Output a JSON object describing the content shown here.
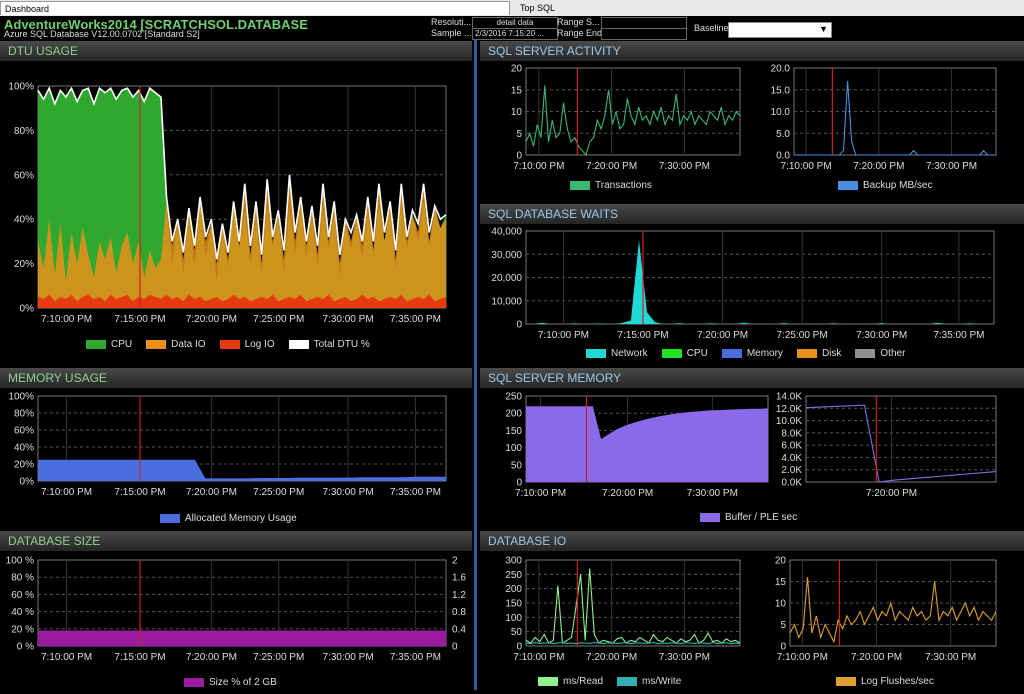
{
  "tabs": [
    {
      "label": "Dashboard"
    },
    {
      "label": "Top SQL"
    }
  ],
  "header": {
    "title": "AdventureWorks2014 [SCRATCHSOL.DATABASE",
    "subtitle": "Azure SQL Database V12.00.0702 [Standard S2]",
    "resolution_label": "Resoluti...",
    "resolution_value": "detail data",
    "sample_label": "Sample ...",
    "sample_value": "2/3/2016 7:15:20 ...",
    "range_start_label": "Range S...",
    "range_start_value": "",
    "range_end_label": "Range End",
    "range_end_value": "",
    "baseline_label": "Baseline",
    "baseline_value": ""
  },
  "panels": {
    "dtu": {
      "title": "DTU USAGE"
    },
    "activity": {
      "title": "SQL SERVER ACTIVITY"
    },
    "waits": {
      "title": "SQL DATABASE WAITS"
    },
    "memory": {
      "title": "MEMORY USAGE"
    },
    "servermem": {
      "title": "SQL SERVER MEMORY"
    },
    "dbsize": {
      "title": "DATABASE SIZE"
    },
    "dbio": {
      "title": "DATABASE IO"
    }
  },
  "colors": {
    "grid": "#555555",
    "marker": "#cc2222",
    "cpu": "#2ea82e",
    "dataio": "#e8901a",
    "logio": "#e83a10",
    "total": "#ffffff",
    "transactions": "#3bb873",
    "backup": "#4a8ee0",
    "network": "#20d8d8",
    "waits_cpu": "#20e020",
    "waits_memory": "#4a6ee0",
    "waits_disk": "#e8901a",
    "waits_other": "#909090",
    "alloc": "#4a6ee0",
    "buffer": "#8a6ae8",
    "ple": "#8a6ae8",
    "dbsize": "#9a1aa0",
    "msread": "#90f090",
    "mswrite": "#30b0b0",
    "logflush": "#e0a030"
  },
  "chart_data": [
    {
      "id": "dtu",
      "type": "area",
      "title": "DTU USAGE",
      "x_ticks": [
        "7:10:00 PM",
        "7:15:00 PM",
        "7:20:00 PM",
        "7:25:00 PM",
        "7:30:00 PM",
        "7:35:00 PM"
      ],
      "y_ticks": [
        "100%",
        "80%",
        "60%",
        "40%",
        "20%",
        "0%"
      ],
      "ylim": [
        0,
        100
      ],
      "grid": true,
      "legend": [
        "CPU",
        "Data IO",
        "Log IO",
        "Total DTU %"
      ],
      "series": [
        {
          "name": "Total DTU %",
          "values": [
            98,
            94,
            99,
            92,
            98,
            95,
            99,
            93,
            98,
            99,
            92,
            99,
            97,
            99,
            94,
            98,
            99,
            95,
            98,
            93,
            99,
            97,
            95,
            50,
            30,
            40,
            25,
            45,
            28,
            50,
            32,
            40,
            22,
            38,
            25,
            48,
            30,
            56,
            28,
            48,
            24,
            58,
            32,
            44,
            26,
            60,
            34,
            50,
            30,
            46,
            28,
            56,
            32,
            48,
            24,
            40,
            34,
            42,
            30,
            50,
            30,
            56,
            34,
            48,
            26,
            56,
            32,
            44,
            38,
            56,
            34,
            46,
            40,
            42
          ]
        },
        {
          "name": "CPU",
          "values": [
            98,
            94,
            99,
            92,
            98,
            95,
            99,
            93,
            98,
            99,
            92,
            99,
            97,
            99,
            94,
            98,
            99,
            95,
            98,
            93,
            99,
            97,
            95,
            45,
            20,
            38,
            15,
            42,
            18,
            48,
            22,
            38,
            12,
            36,
            18,
            46,
            26,
            44,
            20,
            40,
            16,
            46,
            28,
            42,
            16,
            44,
            24,
            46,
            22,
            42,
            18,
            46,
            26,
            44,
            14,
            38,
            26,
            40,
            22,
            44,
            24,
            46,
            30,
            44,
            16,
            48,
            26,
            42,
            30,
            48,
            28,
            44,
            36,
            42
          ]
        },
        {
          "name": "Data IO",
          "values": [
            30,
            18,
            40,
            15,
            38,
            12,
            34,
            20,
            36,
            24,
            14,
            30,
            22,
            32,
            16,
            28,
            34,
            20,
            30,
            14,
            26,
            18,
            22,
            48,
            28,
            40,
            22,
            44,
            26,
            50,
            30,
            38,
            20,
            38,
            22,
            48,
            28,
            56,
            24,
            48,
            20,
            58,
            30,
            42,
            22,
            60,
            30,
            50,
            28,
            46,
            24,
            56,
            30,
            48,
            20,
            40,
            30,
            42,
            28,
            50,
            26,
            56,
            30,
            48,
            22,
            56,
            30,
            42,
            34,
            56,
            30,
            46,
            36,
            40
          ]
        },
        {
          "name": "Log IO",
          "values": [
            5,
            4,
            6,
            3,
            5,
            4,
            6,
            3,
            5,
            6,
            4,
            5,
            3,
            6,
            4,
            5,
            6,
            3,
            5,
            4,
            6,
            5,
            4,
            6,
            4,
            5,
            3,
            6,
            4,
            5,
            3,
            4,
            5,
            3,
            4,
            6,
            4,
            5,
            3,
            4,
            5,
            4,
            6,
            3,
            4,
            5,
            4,
            6,
            3,
            4,
            5,
            4,
            6,
            3,
            4,
            5,
            3,
            4,
            6,
            4,
            5,
            3,
            4,
            5,
            4,
            6,
            3,
            4,
            5,
            4,
            6,
            3,
            4,
            5
          ]
        }
      ]
    },
    {
      "id": "transactions",
      "type": "line",
      "y_ticks": [
        "20",
        "15",
        "10",
        "5",
        "0"
      ],
      "ylim": [
        0,
        20
      ],
      "x_ticks": [
        "7:10:00 PM",
        "7:20:00 PM",
        "7:30:00 PM"
      ],
      "legend": [
        "Transactions"
      ],
      "series": [
        {
          "name": "Transactions",
          "values": [
            3,
            5,
            2,
            7,
            4,
            16,
            3,
            8,
            4,
            5,
            12,
            6,
            3,
            4,
            2,
            1,
            0,
            3,
            4,
            8,
            6,
            9,
            15,
            7,
            10,
            6,
            7,
            13,
            9,
            7,
            11,
            8,
            9,
            7,
            10,
            8,
            11,
            7,
            9,
            8,
            14,
            7,
            9,
            8,
            10,
            7,
            9,
            8,
            7,
            10,
            9,
            8,
            11,
            7,
            9,
            8,
            10,
            9
          ]
        }
      ]
    },
    {
      "id": "backup",
      "type": "line",
      "y_ticks": [
        "20.0",
        "15.0",
        "10.0",
        "5.0",
        "0.0"
      ],
      "ylim": [
        0,
        20
      ],
      "x_ticks": [
        "7:10:00 PM",
        "7:20:00 PM",
        "7:30:00 PM"
      ],
      "legend": [
        "Backup MB/sec"
      ],
      "series": [
        {
          "name": "Backup MB/sec",
          "values": [
            0,
            0,
            0,
            0,
            0,
            0,
            0,
            0,
            0,
            0,
            0,
            0,
            1,
            17,
            3,
            0,
            0,
            0,
            0,
            0,
            0,
            0,
            0,
            0,
            0,
            0,
            0,
            0,
            0,
            1,
            0,
            0,
            0,
            0,
            0,
            0,
            0,
            0,
            0,
            0,
            0,
            0,
            0,
            0,
            0,
            0,
            1,
            0,
            0,
            0
          ]
        }
      ]
    },
    {
      "id": "waits",
      "type": "area",
      "y_ticks": [
        "40,000",
        "30,000",
        "20,000",
        "10,000",
        "0"
      ],
      "ylim": [
        0,
        40000
      ],
      "x_ticks": [
        "7:10:00 PM",
        "7:15:00 PM",
        "7:20:00 PM",
        "7:25:00 PM",
        "7:30:00 PM",
        "7:35:00 PM"
      ],
      "legend": [
        "Network",
        "CPU",
        "Memory",
        "Disk",
        "Other"
      ],
      "series": [
        {
          "name": "Network",
          "values": [
            0,
            0,
            500,
            0,
            0,
            0,
            300,
            0,
            0,
            200,
            0,
            0,
            500,
            1500,
            36000,
            5000,
            800,
            0,
            0,
            400,
            0,
            0,
            0,
            300,
            0,
            0,
            0,
            500,
            0,
            0,
            0,
            0,
            400,
            0,
            0,
            0,
            0,
            0,
            300,
            0,
            0,
            0,
            0,
            0,
            400,
            0,
            0,
            0,
            0,
            0,
            0,
            500,
            0,
            0,
            0,
            300,
            0,
            0,
            0
          ]
        }
      ]
    },
    {
      "id": "memory",
      "type": "area",
      "y_ticks": [
        "100%",
        "80%",
        "60%",
        "40%",
        "20%",
        "0%"
      ],
      "ylim": [
        0,
        100
      ],
      "x_ticks": [
        "7:10:00 PM",
        "7:15:00 PM",
        "7:20:00 PM",
        "7:25:00 PM",
        "7:30:00 PM",
        "7:35:00 PM"
      ],
      "legend": [
        "Allocated Memory Usage"
      ],
      "series": [
        {
          "name": "Allocated Memory Usage",
          "values": [
            25,
            25,
            25,
            25,
            25,
            25,
            25,
            25,
            25,
            25,
            25,
            25,
            25,
            25,
            25,
            25,
            3,
            3,
            3,
            3,
            3,
            3.5,
            3.5,
            3.5,
            3.5,
            4,
            4,
            4,
            4,
            4,
            4,
            4.5,
            4.5,
            4.5,
            4.5,
            4.5,
            5,
            5,
            5,
            5
          ]
        }
      ]
    },
    {
      "id": "buffer",
      "type": "area",
      "y_ticks": [
        "250",
        "200",
        "150",
        "100",
        "50",
        "0"
      ],
      "ylim": [
        0,
        250
      ],
      "x_ticks": [
        "7:10:00 PM",
        "7:20:00 PM",
        "7:30:00 PM"
      ],
      "legend": [
        "Buffer / PLE sec"
      ],
      "series": [
        {
          "name": "Buffer / PLE sec",
          "values": [
            220,
            220,
            220,
            220,
            220,
            220,
            220,
            220,
            220,
            125,
            140,
            155,
            165,
            173,
            180,
            186,
            191,
            195,
            199,
            202,
            204,
            206,
            208,
            209,
            210,
            211,
            212,
            213,
            213,
            214
          ]
        }
      ]
    },
    {
      "id": "ple",
      "type": "line",
      "y_ticks": [
        "14.0K",
        "12.0K",
        "10.0K",
        "8.0K",
        "6.0K",
        "4.0K",
        "2.0K",
        "0.0K"
      ],
      "ylim": [
        0,
        14000
      ],
      "x_ticks": [
        "7:20:00 PM"
      ],
      "series": [
        {
          "name": "PLE",
          "values": [
            12100,
            12200,
            12300,
            12400,
            12500,
            0,
            300,
            500,
            700,
            900,
            1100,
            1300,
            1500,
            1700
          ]
        }
      ]
    },
    {
      "id": "dbsize",
      "type": "area",
      "y_ticks": [
        "100 %",
        "80 %",
        "60 %",
        "40 %",
        "20 %",
        "0 %"
      ],
      "ylim": [
        0,
        100
      ],
      "y2_ticks": [
        "2",
        "1.6",
        "1.2",
        "0.8",
        "0.4",
        "0"
      ],
      "x_ticks": [
        "7:10:00 PM",
        "7:15:00 PM",
        "7:20:00 PM",
        "7:25:00 PM",
        "7:30:00 PM",
        "7:35:00 PM"
      ],
      "legend": [
        "Size % of 2 GB"
      ],
      "series": [
        {
          "name": "Size % of 2 GB",
          "values": [
            18,
            18,
            18,
            18,
            18,
            18,
            18,
            18,
            18,
            18,
            18,
            18
          ]
        }
      ]
    },
    {
      "id": "dbio_read",
      "type": "line",
      "y_ticks": [
        "300",
        "250",
        "200",
        "150",
        "100",
        "50",
        "0"
      ],
      "ylim": [
        0,
        300
      ],
      "x_ticks": [
        "7:10:00 PM",
        "7:20:00 PM",
        "7:30:00 PM"
      ],
      "legend": [
        "ms/Read",
        "ms/Write"
      ],
      "series": [
        {
          "name": "ms/Read",
          "values": [
            20,
            10,
            30,
            15,
            40,
            10,
            20,
            210,
            10,
            20,
            30,
            140,
            250,
            20,
            270,
            40,
            10,
            20,
            15,
            10,
            25,
            30,
            10,
            20,
            15,
            30,
            20,
            10,
            40,
            20,
            15,
            30,
            20,
            10,
            25,
            15,
            20,
            40,
            10,
            20,
            45,
            15,
            20,
            10,
            25,
            15,
            20,
            10
          ]
        },
        {
          "name": "ms/Write",
          "values": [
            10,
            8,
            12,
            9,
            10,
            11,
            8,
            10,
            12,
            9,
            10,
            8,
            11,
            10,
            9,
            12,
            10,
            8,
            11,
            10,
            9,
            10,
            12,
            8,
            10,
            11,
            9,
            10,
            12,
            8,
            10,
            9,
            11,
            10,
            8,
            12,
            10,
            9,
            11,
            10,
            8,
            12,
            9,
            10,
            11,
            8,
            10,
            9
          ]
        }
      ]
    },
    {
      "id": "logflush",
      "type": "line",
      "y_ticks": [
        "20",
        "15",
        "10",
        "5",
        "0"
      ],
      "ylim": [
        0,
        20
      ],
      "x_ticks": [
        "7:10:00 PM",
        "7:20:00 PM",
        "7:30:00 PM"
      ],
      "legend": [
        "Log Flushes/sec"
      ],
      "series": [
        {
          "name": "Log Flushes/sec",
          "values": [
            3,
            5,
            2,
            4,
            16,
            3,
            7,
            2,
            5,
            3,
            1,
            6,
            4,
            7,
            5,
            6,
            8,
            5,
            7,
            9,
            6,
            8,
            7,
            10,
            6,
            8,
            7,
            6,
            9,
            7,
            8,
            6,
            7,
            15,
            6,
            8,
            7,
            9,
            6,
            8,
            10,
            7,
            9,
            6,
            8,
            7,
            6,
            8
          ]
        }
      ]
    }
  ]
}
